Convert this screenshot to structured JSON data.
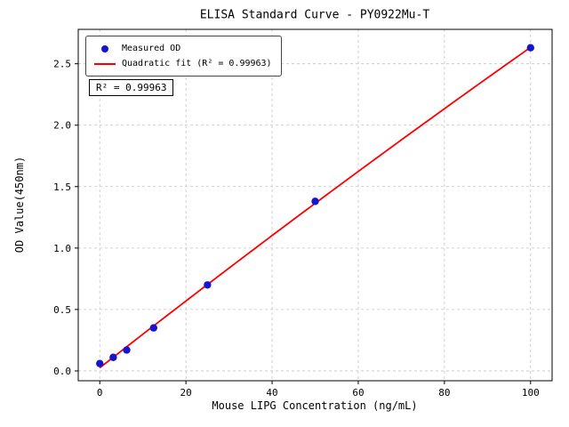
{
  "chart_data": {
    "type": "scatter",
    "title": "ELISA Standard Curve - PY0922Mu-T",
    "xlabel": "Mouse LIPG Concentration (ng/mL)",
    "ylabel": "OD Value(450nm)",
    "xlim": [
      -5,
      105
    ],
    "ylim": [
      -0.08,
      2.78
    ],
    "x_ticks": [
      0,
      20,
      40,
      60,
      80,
      100
    ],
    "x_tick_labels": [
      "0",
      "20",
      "40",
      "60",
      "80",
      "100"
    ],
    "y_ticks": [
      0.0,
      0.5,
      1.0,
      1.5,
      2.0,
      2.5
    ],
    "y_tick_labels": [
      "0.0",
      "0.5",
      "1.0",
      "1.5",
      "2.0",
      "2.5"
    ],
    "series": [
      {
        "name": "Measured OD",
        "kind": "points",
        "x": [
          0,
          3.125,
          6.25,
          12.5,
          25,
          50,
          100
        ],
        "y": [
          0.06,
          0.11,
          0.17,
          0.35,
          0.7,
          1.38,
          2.63
        ],
        "color": "#1515cd"
      },
      {
        "name": "Quadratic fit (R² = 0.99963)",
        "kind": "quadratic-fit-line",
        "color": "#ff0000"
      }
    ],
    "legend": {
      "position": "upper-left",
      "items": [
        {
          "label": "Measured OD",
          "marker": "dot",
          "color": "#1515cd"
        },
        {
          "label": "Quadratic fit (R² = 0.99963)",
          "marker": "line",
          "color": "#ff0000"
        }
      ]
    },
    "annotation": "R² = 0.99963",
    "grid": "dashed",
    "colors": {
      "points": "#1515cd",
      "fit_line": "#ff0000",
      "grid": "#c3c3c3",
      "frame": "#000000"
    }
  }
}
